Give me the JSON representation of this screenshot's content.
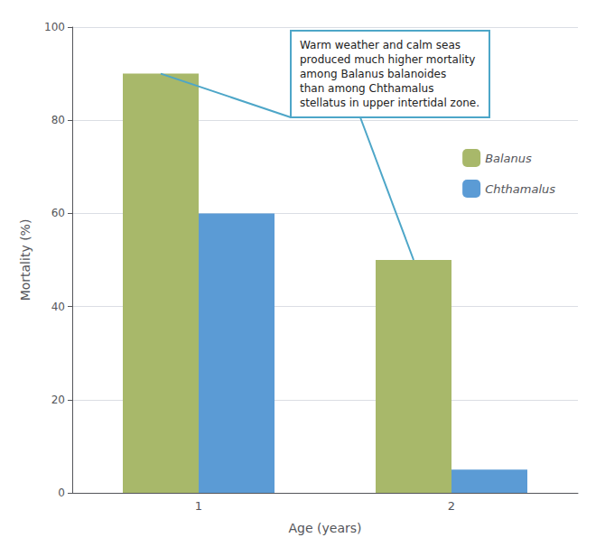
{
  "chart_data": {
    "type": "bar",
    "xlabel": "Age (years)",
    "ylabel": "Mortality (%)",
    "categories": [
      "1",
      "2"
    ],
    "series": [
      {
        "name": "Balanus",
        "color": "#a8b86a",
        "values": [
          90,
          50
        ]
      },
      {
        "name": "Chthamalus",
        "color": "#5b9bd5",
        "values": [
          60,
          5
        ]
      }
    ],
    "ylim": [
      0,
      100
    ],
    "yticks": [
      0,
      20,
      40,
      60,
      80,
      100
    ],
    "grid": true,
    "legend": "upper right",
    "annotation": "Warm weather and calm seas\nproduced much higher mortality\namong Balanus balanoides\nthan among Chthamalus\nstellatus in upper intertidal zone."
  }
}
